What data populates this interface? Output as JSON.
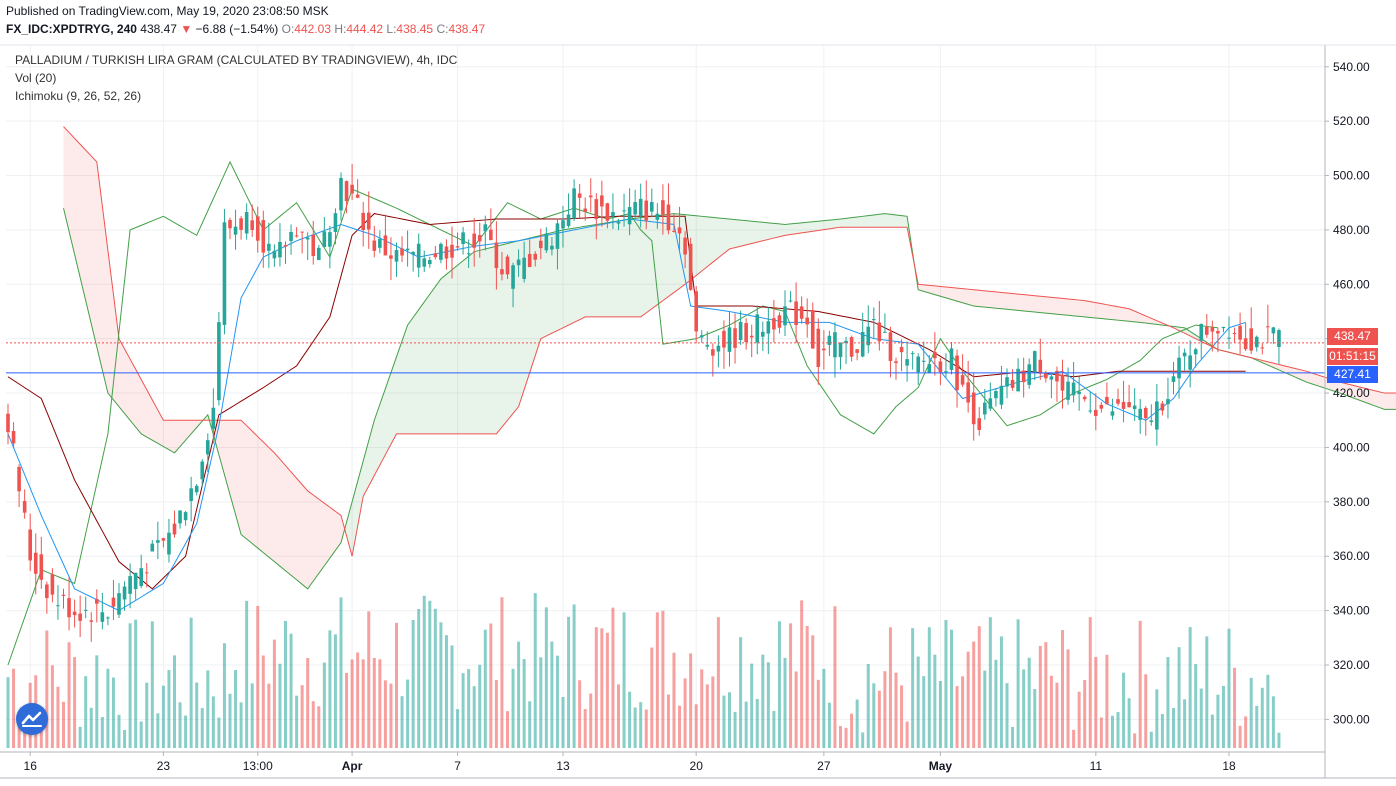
{
  "header": {
    "published": "Published on TradingView.com, May 19, 2020 23:08:50 MSK",
    "symbol": "FX_IDC:XPDTRYG, 240",
    "last": "438.47",
    "change_arrow": "▼",
    "change": "−6.88 (−1.54%)",
    "open_label": "O:",
    "open": "442.03",
    "high_label": "H:",
    "high": "444.42",
    "low_label": "L:",
    "low": "438.45",
    "close_label": "C:",
    "close": "438.47"
  },
  "legend": {
    "title": "PALLADIUM / TURKISH LIRA GRAM (CALCULATED BY TRADINGVIEW), 4h, IDC",
    "vol": "Vol (20)",
    "ichimoku": "Ichimoku (9, 26, 52, 26)"
  },
  "price_tags": {
    "last": "438.47",
    "countdown": "01:51:15",
    "line": "427.41"
  },
  "colors": {
    "up": "#26a69a",
    "down": "#ef5350",
    "conversion": "#2196f3",
    "base": "#8b0000",
    "lagging": "#43a047",
    "span_a": "#43a047",
    "span_b": "#ef5350",
    "cloud_bull": "#43a047",
    "cloud_bear": "#ef5350",
    "hline": "#2962ff",
    "logo": "#2f6bd9"
  },
  "chart_data": {
    "type": "candlestick",
    "title": "PALLADIUM / TURKISH LIRA GRAM (CALCULATED BY TRADINGVIEW), 4h, IDC",
    "ylim": [
      288,
      548
    ],
    "y_ticks": [
      300,
      320,
      340,
      360,
      380,
      400,
      420,
      440,
      460,
      480,
      500,
      520,
      540
    ],
    "x_ticks": [
      "16",
      "23",
      "13:00",
      "Apr",
      "7",
      "13",
      "20",
      "27",
      "May",
      "11",
      "18"
    ],
    "bars_per_day": 6,
    "horizontal_line": 427.41,
    "last_price": 438.47,
    "candle_count": 230,
    "close_anchors": [
      [
        0,
        410
      ],
      [
        4,
        360
      ],
      [
        8,
        345
      ],
      [
        12,
        340
      ],
      [
        18,
        340
      ],
      [
        22,
        352
      ],
      [
        26,
        360
      ],
      [
        30,
        370
      ],
      [
        34,
        390
      ],
      [
        37,
        415
      ],
      [
        39,
        480
      ],
      [
        44,
        485
      ],
      [
        48,
        468
      ],
      [
        52,
        482
      ],
      [
        56,
        470
      ],
      [
        60,
        498
      ],
      [
        63,
        488
      ],
      [
        66,
        475
      ],
      [
        70,
        470
      ],
      [
        74,
        470
      ],
      [
        78,
        473
      ],
      [
        82,
        475
      ],
      [
        86,
        478
      ],
      [
        90,
        462
      ],
      [
        94,
        470
      ],
      [
        98,
        478
      ],
      [
        102,
        492
      ],
      [
        106,
        488
      ],
      [
        110,
        485
      ],
      [
        114,
        488
      ],
      [
        118,
        486
      ],
      [
        120,
        483
      ],
      [
        122,
        475
      ],
      [
        124,
        440
      ],
      [
        128,
        438
      ],
      [
        132,
        442
      ],
      [
        136,
        445
      ],
      [
        140,
        450
      ],
      [
        144,
        448
      ],
      [
        146,
        432
      ],
      [
        148,
        438
      ],
      [
        152,
        436
      ],
      [
        156,
        445
      ],
      [
        158,
        438
      ],
      [
        160,
        435
      ],
      [
        162,
        430
      ],
      [
        166,
        432
      ],
      [
        170,
        432
      ],
      [
        172,
        420
      ],
      [
        175,
        410
      ],
      [
        178,
        418
      ],
      [
        182,
        425
      ],
      [
        185,
        432
      ],
      [
        188,
        428
      ],
      [
        190,
        420
      ],
      [
        194,
        418
      ],
      [
        198,
        413
      ],
      [
        202,
        415
      ],
      [
        205,
        408
      ],
      [
        210,
        425
      ],
      [
        214,
        440
      ],
      [
        217,
        445
      ],
      [
        220,
        445
      ],
      [
        223,
        440
      ]
    ],
    "ichimoku_lines": {
      "conversion": [
        [
          0,
          405
        ],
        [
          6,
          375
        ],
        [
          12,
          348
        ],
        [
          20,
          340
        ],
        [
          28,
          350
        ],
        [
          34,
          372
        ],
        [
          38,
          408
        ],
        [
          42,
          455
        ],
        [
          46,
          470
        ],
        [
          52,
          476
        ],
        [
          60,
          482
        ],
        [
          66,
          478
        ],
        [
          74,
          470
        ],
        [
          84,
          474
        ],
        [
          92,
          476
        ],
        [
          102,
          480
        ],
        [
          112,
          484
        ],
        [
          120,
          482
        ],
        [
          123,
          452
        ],
        [
          130,
          450
        ],
        [
          140,
          446
        ],
        [
          148,
          446
        ],
        [
          156,
          440
        ],
        [
          164,
          438
        ],
        [
          172,
          418
        ],
        [
          182,
          424
        ],
        [
          190,
          428
        ],
        [
          198,
          416
        ],
        [
          205,
          410
        ],
        [
          210,
          418
        ],
        [
          214,
          430
        ],
        [
          220,
          444
        ],
        [
          223,
          446
        ]
      ],
      "base": [
        [
          0,
          426
        ],
        [
          6,
          418
        ],
        [
          12,
          388
        ],
        [
          20,
          358
        ],
        [
          26,
          348
        ],
        [
          32,
          360
        ],
        [
          38,
          412
        ],
        [
          46,
          422
        ],
        [
          52,
          430
        ],
        [
          58,
          448
        ],
        [
          62,
          478
        ],
        [
          66,
          486
        ],
        [
          76,
          482
        ],
        [
          88,
          484
        ],
        [
          100,
          484
        ],
        [
          110,
          485
        ],
        [
          122,
          485
        ],
        [
          124,
          452
        ],
        [
          134,
          452
        ],
        [
          146,
          450
        ],
        [
          156,
          446
        ],
        [
          166,
          436
        ],
        [
          174,
          426
        ],
        [
          184,
          428
        ],
        [
          192,
          426
        ],
        [
          200,
          428
        ],
        [
          210,
          428
        ],
        [
          223,
          428
        ]
      ],
      "lagging": [
        [
          0,
          320
        ],
        [
          6,
          355
        ],
        [
          12,
          350
        ],
        [
          18,
          405
        ],
        [
          22,
          480
        ],
        [
          28,
          485
        ],
        [
          34,
          478
        ],
        [
          40,
          505
        ],
        [
          46,
          480
        ],
        [
          52,
          490
        ],
        [
          58,
          470
        ],
        [
          62,
          495
        ],
        [
          70,
          488
        ],
        [
          78,
          480
        ],
        [
          84,
          474
        ],
        [
          90,
          490
        ],
        [
          96,
          484
        ],
        [
          102,
          488
        ],
        [
          108,
          484
        ],
        [
          112,
          486
        ],
        [
          114,
          480
        ],
        [
          116,
          476
        ],
        [
          118,
          438
        ],
        [
          124,
          440
        ],
        [
          130,
          445
        ],
        [
          136,
          452
        ],
        [
          140,
          450
        ],
        [
          144,
          430
        ],
        [
          150,
          412
        ],
        [
          156,
          405
        ],
        [
          160,
          415
        ],
        [
          164,
          422
        ],
        [
          168,
          440
        ],
        [
          172,
          428
        ],
        [
          176,
          418
        ],
        [
          180,
          408
        ],
        [
          186,
          412
        ],
        [
          192,
          420
        ],
        [
          198,
          425
        ],
        [
          204,
          432
        ],
        [
          208,
          440
        ],
        [
          214,
          445
        ],
        [
          218,
          444
        ]
      ],
      "span_a": [
        [
          10,
          488
        ],
        [
          18,
          420
        ],
        [
          24,
          405
        ],
        [
          30,
          398
        ],
        [
          36,
          412
        ],
        [
          42,
          368
        ],
        [
          48,
          358
        ],
        [
          54,
          348
        ],
        [
          60,
          365
        ],
        [
          66,
          410
        ],
        [
          72,
          445
        ],
        [
          78,
          462
        ],
        [
          84,
          472
        ],
        [
          92,
          476
        ],
        [
          100,
          480
        ],
        [
          106,
          482
        ],
        [
          112,
          484
        ],
        [
          120,
          486
        ],
        [
          130,
          484
        ],
        [
          140,
          482
        ],
        [
          150,
          484
        ],
        [
          158,
          486
        ],
        [
          162,
          485
        ],
        [
          164,
          458
        ],
        [
          174,
          452
        ],
        [
          184,
          450
        ],
        [
          194,
          448
        ],
        [
          204,
          446
        ],
        [
          212,
          444
        ],
        [
          218,
          436
        ],
        [
          224,
          433
        ],
        [
          234,
          424
        ],
        [
          240,
          420
        ],
        [
          248,
          414
        ],
        [
          252,
          414
        ]
      ],
      "span_b": [
        [
          10,
          518
        ],
        [
          16,
          505
        ],
        [
          20,
          440
        ],
        [
          28,
          410
        ],
        [
          36,
          410
        ],
        [
          42,
          410
        ],
        [
          48,
          398
        ],
        [
          54,
          384
        ],
        [
          60,
          375
        ],
        [
          62,
          360
        ],
        [
          64,
          382
        ],
        [
          70,
          405
        ],
        [
          80,
          405
        ],
        [
          88,
          405
        ],
        [
          92,
          415
        ],
        [
          96,
          440
        ],
        [
          104,
          448
        ],
        [
          114,
          448
        ],
        [
          122,
          460
        ],
        [
          130,
          473
        ],
        [
          140,
          478
        ],
        [
          150,
          481
        ],
        [
          158,
          481
        ],
        [
          162,
          481
        ],
        [
          164,
          460
        ],
        [
          174,
          458
        ],
        [
          184,
          456
        ],
        [
          194,
          454
        ],
        [
          202,
          451
        ],
        [
          210,
          444
        ],
        [
          218,
          436
        ],
        [
          224,
          433
        ],
        [
          234,
          428
        ],
        [
          240,
          424
        ],
        [
          248,
          420
        ],
        [
          252,
          420
        ]
      ]
    },
    "volume_ylim": [
      0,
      60
    ]
  }
}
